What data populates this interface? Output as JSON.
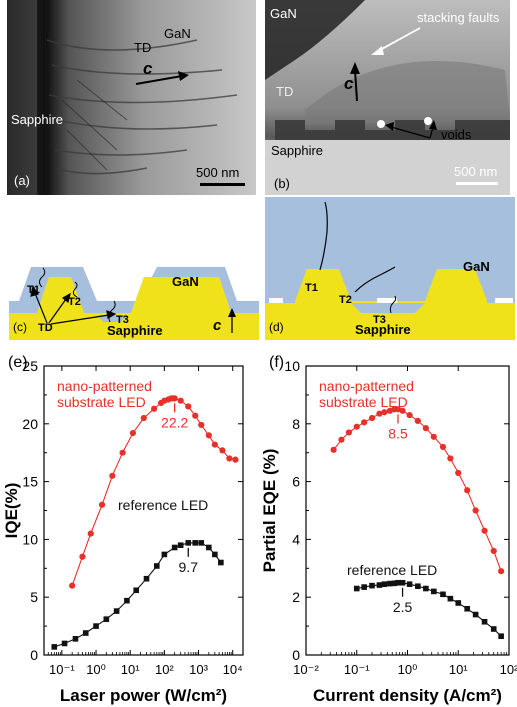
{
  "panel_a": {
    "letter": "(a)",
    "labels": {
      "gan": "GaN",
      "td": "TD",
      "c": "c",
      "sapphire": "Sapphire"
    },
    "scale_bar": "500 nm"
  },
  "panel_b": {
    "letter": "(b)",
    "labels": {
      "gan": "GaN",
      "stacking_faults": "stacking faults",
      "c": "c",
      "td": "TD",
      "voids": "voids",
      "sapphire": "Sapphire"
    },
    "scale_bar": "500 nm"
  },
  "panel_c": {
    "letter": "(c)",
    "labels": {
      "gan": "GaN",
      "t1": "T1",
      "t2": "T2",
      "t3": "T3",
      "td": "TD",
      "sapphire": "Sapphire",
      "c": "c"
    }
  },
  "panel_d": {
    "letter": "(d)",
    "labels": {
      "gan": "GaN",
      "t1": "T1",
      "t2": "T2",
      "t3": "T3",
      "sapphire": "Sapphire"
    }
  },
  "colors": {
    "gan": "#a6bfdd",
    "sapphire": "#f0e21a",
    "npsl": "#e8302a",
    "ref": "#111111"
  },
  "chart_data": [
    {
      "panel": "(e)",
      "type": "line",
      "xlabel": "Laser power (W/cm²)",
      "ylabel": "IQE(%)",
      "x_scale": "log",
      "xlim": [
        0.03,
        20000
      ],
      "ylim": [
        0,
        25
      ],
      "x_ticks": [
        0.1,
        1,
        10,
        100,
        1000,
        10000
      ],
      "x_tick_labels": [
        "10⁻¹",
        "10⁰",
        "10¹",
        "10²",
        "10³",
        "10⁴"
      ],
      "y_ticks": [
        0,
        5,
        10,
        15,
        20,
        25
      ],
      "series": [
        {
          "name": "nano-patterned substrate LED",
          "legend_lines": [
            "nano-patterned",
            "substrate LED"
          ],
          "color": "#e8302a",
          "marker": "circle",
          "peak_label": "22.2",
          "peak_index": 14,
          "x": [
            0.2,
            0.4,
            0.7,
            1.5,
            3,
            6,
            12,
            25,
            50,
            80,
            100,
            130,
            160,
            180,
            200,
            300,
            500,
            800,
            1200,
            2000,
            3000,
            5000,
            8000,
            12000
          ],
          "y": [
            6.0,
            8.5,
            10.5,
            13.0,
            15.5,
            17.5,
            19.2,
            20.5,
            21.3,
            21.8,
            22.0,
            22.1,
            22.2,
            22.2,
            22.2,
            22.0,
            21.5,
            20.7,
            19.9,
            19.0,
            18.2,
            17.7,
            17.0,
            16.9
          ]
        },
        {
          "name": "reference LED",
          "legend_lines": [
            "reference LED"
          ],
          "color": "#111111",
          "marker": "square",
          "peak_label": "9.7",
          "peak_index": 14,
          "x": [
            0.06,
            0.12,
            0.25,
            0.5,
            1,
            2,
            4,
            8,
            15,
            30,
            60,
            100,
            200,
            300,
            500,
            800,
            1200,
            2000,
            3000,
            4500
          ],
          "y": [
            0.7,
            1.0,
            1.4,
            1.9,
            2.5,
            3.1,
            3.8,
            4.7,
            5.6,
            6.6,
            7.7,
            8.7,
            9.3,
            9.5,
            9.7,
            9.7,
            9.7,
            9.3,
            8.7,
            8.0
          ]
        }
      ]
    },
    {
      "panel": "(f)",
      "type": "line",
      "xlabel": "Current density (A/cm²)",
      "ylabel": "Partial EQE (%)",
      "x_scale": "log",
      "xlim": [
        0.01,
        100
      ],
      "ylim": [
        0,
        10
      ],
      "x_ticks": [
        0.01,
        0.1,
        1,
        10,
        100
      ],
      "x_tick_labels": [
        "10⁻²",
        "10⁻¹",
        "10⁰",
        "10¹",
        "10²"
      ],
      "y_ticks": [
        0,
        2,
        4,
        6,
        8,
        10
      ],
      "series": [
        {
          "name": "nano-patterned substrate LED",
          "legend_lines": [
            "nano-patterned",
            "substrate LED"
          ],
          "color": "#e8302a",
          "marker": "circle",
          "peak_label": "8.5",
          "peak_index": 10,
          "x": [
            0.035,
            0.05,
            0.07,
            0.1,
            0.14,
            0.2,
            0.28,
            0.35,
            0.45,
            0.55,
            0.65,
            0.8,
            1.1,
            1.6,
            2.3,
            3.3,
            5,
            7,
            10,
            15,
            22,
            33,
            50,
            70
          ],
          "y": [
            7.1,
            7.45,
            7.7,
            7.9,
            8.05,
            8.2,
            8.35,
            8.4,
            8.45,
            8.5,
            8.5,
            8.45,
            8.3,
            8.1,
            7.85,
            7.55,
            7.2,
            6.8,
            6.3,
            5.7,
            5.0,
            4.3,
            3.6,
            2.9
          ]
        },
        {
          "name": "reference LED",
          "legend_lines": [
            "reference LED"
          ],
          "color": "#111111",
          "marker": "square",
          "peak_label": "2.5",
          "peak_index": 8,
          "x": [
            0.1,
            0.14,
            0.2,
            0.28,
            0.35,
            0.45,
            0.55,
            0.65,
            0.8,
            1.1,
            1.6,
            2.3,
            3.3,
            5,
            7,
            10,
            15,
            22,
            33,
            50,
            70
          ],
          "y": [
            2.3,
            2.35,
            2.4,
            2.42,
            2.45,
            2.47,
            2.48,
            2.5,
            2.5,
            2.45,
            2.38,
            2.3,
            2.2,
            2.1,
            1.95,
            1.8,
            1.6,
            1.4,
            1.15,
            0.9,
            0.65
          ]
        }
      ]
    }
  ]
}
